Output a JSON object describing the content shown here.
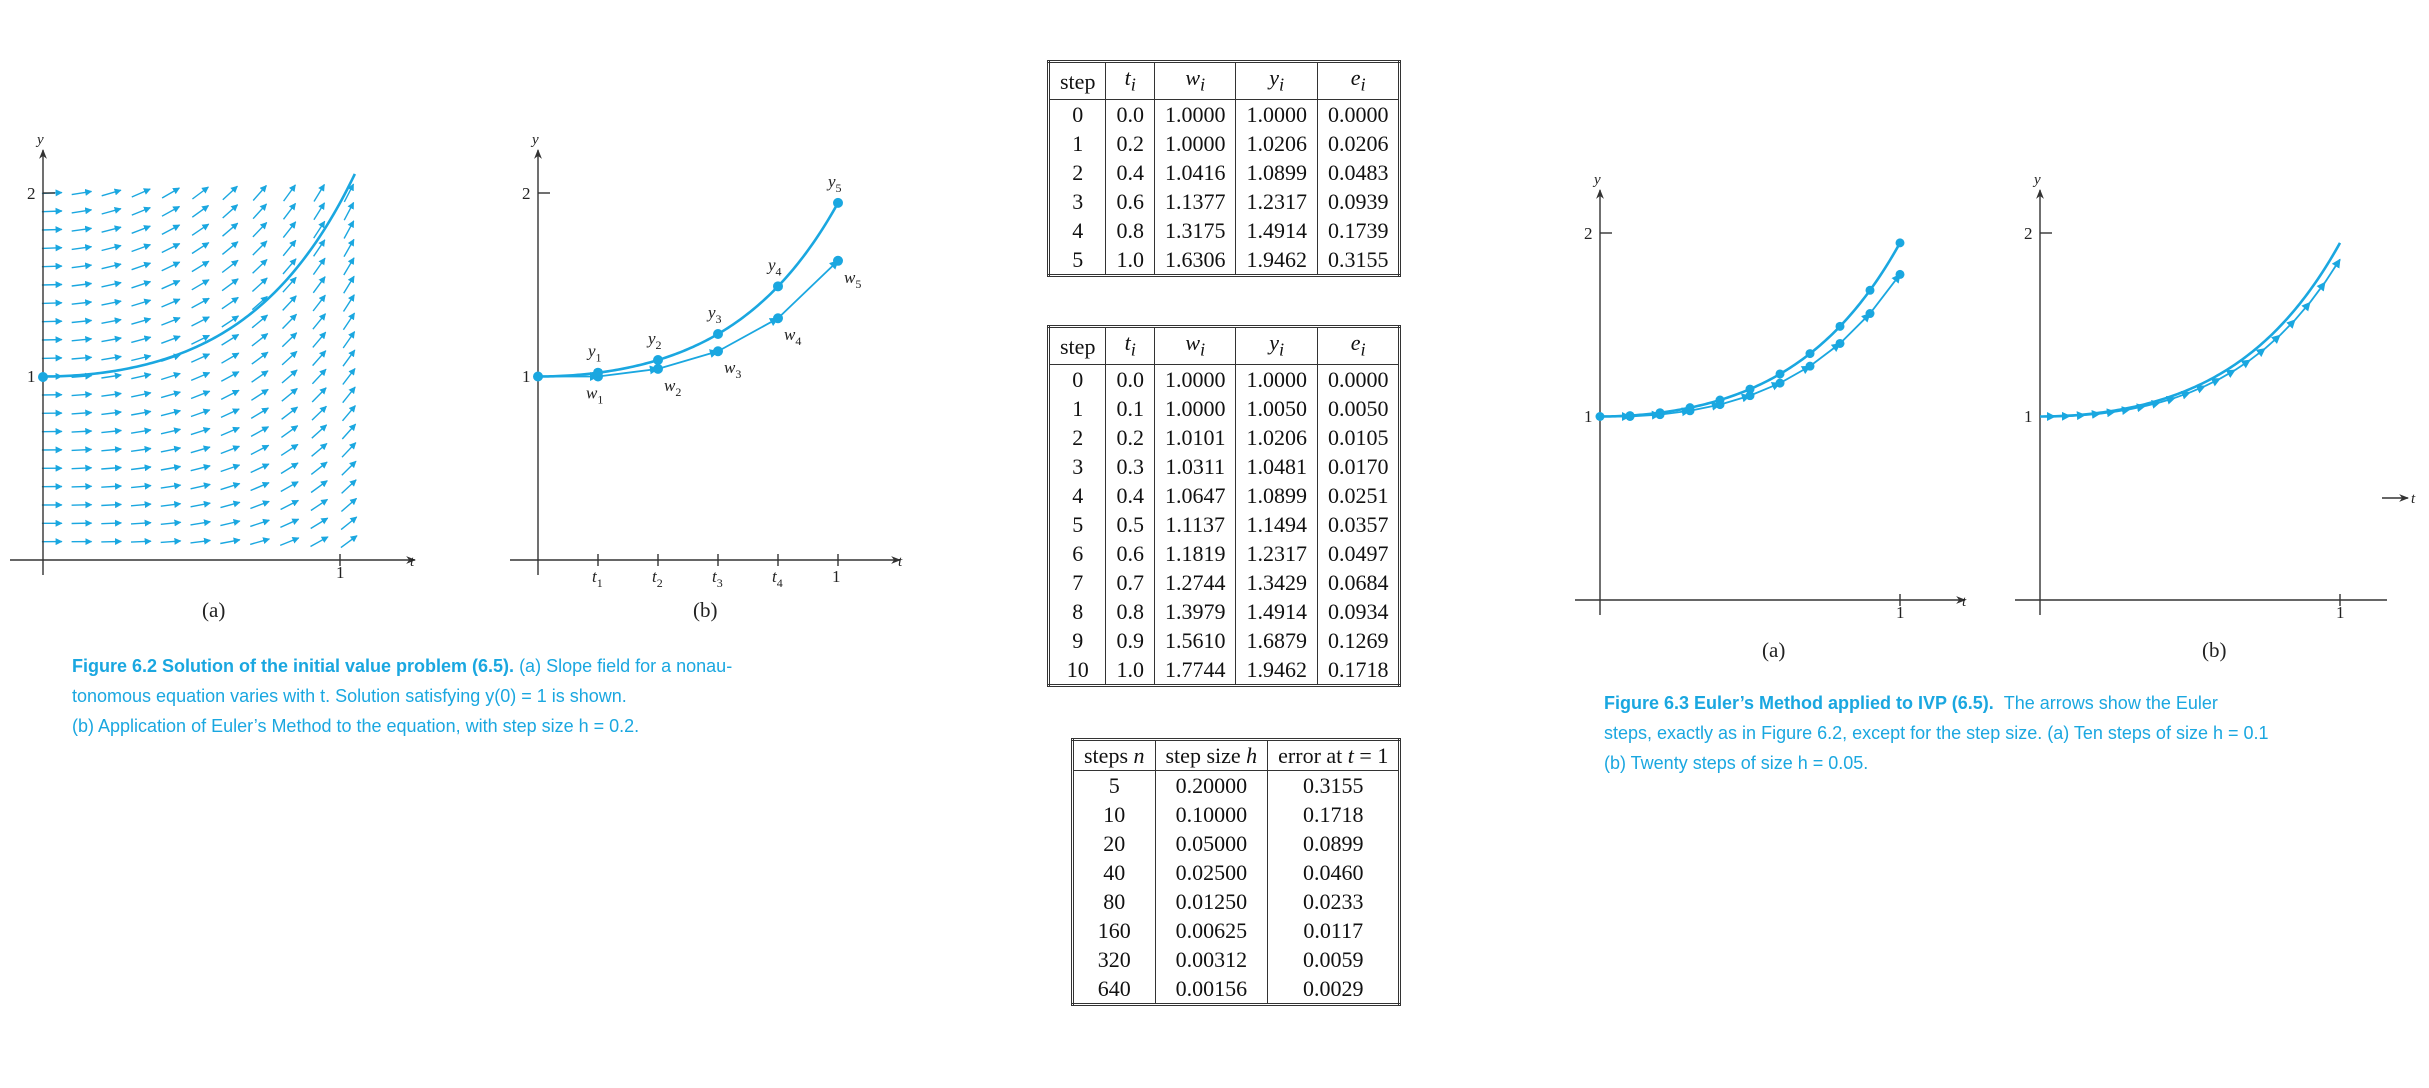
{
  "figure_6_2": {
    "panel_a_label": "(a)",
    "panel_b_label": "(b)",
    "caption_bold": "Figure 6.2 Solution of the initial value problem (6.5).",
    "caption_rest_1": " (a) Slope field for a nonau-",
    "caption_line_2": "tonomous equation varies with t. Solution satisfying y(0) = 1 is shown.",
    "caption_line_3": "(b) Application of Euler’s Method to the equation, with step size h = 0.2."
  },
  "figure_6_3": {
    "panel_a_label": "(a)",
    "panel_b_label": "(b)",
    "caption_bold": "Figure 6.3 Euler’s Method applied to IVP (6.5).",
    "caption_rest_1": "The arrows show the Euler",
    "caption_line_2": "steps, exactly as in Figure 6.2, except for the step size. (a) Ten steps of size h = 0.1",
    "caption_line_3": "(b) Twenty steps of size h = 0.05."
  },
  "stray_label": "t",
  "chart_data": [
    {
      "type": "line",
      "panel": "Figure 6.2 (a)",
      "title": "",
      "xlabel": "t",
      "ylabel": "y",
      "xlim": [
        0,
        1.2
      ],
      "ylim": [
        0,
        2.05
      ],
      "xticks": [
        "1"
      ],
      "yticks": [
        "1",
        "2"
      ],
      "grid": false,
      "slope_field": true,
      "initial_point": [
        0,
        1
      ],
      "series": [
        {
          "x": [
            0,
            0.1,
            0.2,
            0.3,
            0.4,
            0.5,
            0.6,
            0.7,
            0.8,
            0.9,
            1.0,
            1.05
          ],
          "values": [
            1.0,
            1.005,
            1.0206,
            1.0481,
            1.0899,
            1.1494,
            1.2317,
            1.3429,
            1.4914,
            1.6879,
            1.9462,
            2.0994
          ]
        }
      ]
    },
    {
      "type": "line",
      "panel": "Figure 6.2 (b)",
      "title": "",
      "xlabel": "t",
      "ylabel": "y",
      "xlim": [
        0,
        1.2
      ],
      "ylim": [
        0,
        2.05
      ],
      "xticks": [
        "t1",
        "t2",
        "t3",
        "t4",
        "1"
      ],
      "yticks": [
        "1",
        "2"
      ],
      "grid": false,
      "point_labels_y": [
        "y1",
        "y2",
        "y3",
        "y4",
        "y5"
      ],
      "point_labels_w": [
        "w1",
        "w2",
        "w3",
        "w4",
        "w5"
      ],
      "series": [
        {
          "x": [
            0,
            0.2,
            0.4,
            0.6,
            0.8,
            1.0
          ],
          "values": [
            1.0,
            1.0206,
            1.0899,
            1.2317,
            1.4914,
            1.9462
          ]
        },
        {
          "x": [
            0,
            0.2,
            0.4,
            0.6,
            0.8,
            1.0
          ],
          "values": [
            1.0,
            1.0,
            1.0416,
            1.1377,
            1.3175,
            1.6306
          ]
        }
      ]
    },
    {
      "type": "table",
      "columns": [
        "step",
        "t_i",
        "w_i",
        "y_i",
        "e_i"
      ],
      "rows": [
        [
          "0",
          "0.0",
          "1.0000",
          "1.0000",
          "0.0000"
        ],
        [
          "1",
          "0.2",
          "1.0000",
          "1.0206",
          "0.0206"
        ],
        [
          "2",
          "0.4",
          "1.0416",
          "1.0899",
          "0.0483"
        ],
        [
          "3",
          "0.6",
          "1.1377",
          "1.2317",
          "0.0939"
        ],
        [
          "4",
          "0.8",
          "1.3175",
          "1.4914",
          "0.1739"
        ],
        [
          "5",
          "1.0",
          "1.6306",
          "1.9462",
          "0.3155"
        ]
      ]
    },
    {
      "type": "table",
      "columns": [
        "step",
        "t_i",
        "w_i",
        "y_i",
        "e_i"
      ],
      "rows": [
        [
          "0",
          "0.0",
          "1.0000",
          "1.0000",
          "0.0000"
        ],
        [
          "1",
          "0.1",
          "1.0000",
          "1.0050",
          "0.0050"
        ],
        [
          "2",
          "0.2",
          "1.0101",
          "1.0206",
          "0.0105"
        ],
        [
          "3",
          "0.3",
          "1.0311",
          "1.0481",
          "0.0170"
        ],
        [
          "4",
          "0.4",
          "1.0647",
          "1.0899",
          "0.0251"
        ],
        [
          "5",
          "0.5",
          "1.1137",
          "1.1494",
          "0.0357"
        ],
        [
          "6",
          "0.6",
          "1.1819",
          "1.2317",
          "0.0497"
        ],
        [
          "7",
          "0.7",
          "1.2744",
          "1.3429",
          "0.0684"
        ],
        [
          "8",
          "0.8",
          "1.3979",
          "1.4914",
          "0.0934"
        ],
        [
          "9",
          "0.9",
          "1.5610",
          "1.6879",
          "0.1269"
        ],
        [
          "10",
          "1.0",
          "1.7744",
          "1.9462",
          "0.1718"
        ]
      ]
    },
    {
      "type": "table",
      "columns": [
        "steps n",
        "step size h",
        "error at t = 1"
      ],
      "rows": [
        [
          "5",
          "0.20000",
          "0.3155"
        ],
        [
          "10",
          "0.10000",
          "0.1718"
        ],
        [
          "20",
          "0.05000",
          "0.0899"
        ],
        [
          "40",
          "0.02500",
          "0.0460"
        ],
        [
          "80",
          "0.01250",
          "0.0233"
        ],
        [
          "160",
          "0.00625",
          "0.0117"
        ],
        [
          "320",
          "0.00312",
          "0.0059"
        ],
        [
          "640",
          "0.00156",
          "0.0029"
        ]
      ]
    },
    {
      "type": "line",
      "panel": "Figure 6.3 (a)",
      "title": "",
      "xlabel": "t",
      "ylabel": "y",
      "xlim": [
        0,
        1.2
      ],
      "ylim": [
        0,
        2.05
      ],
      "xticks": [
        "1"
      ],
      "yticks": [
        "1",
        "2"
      ],
      "grid": false,
      "series": [
        {
          "x": [
            0,
            0.1,
            0.2,
            0.3,
            0.4,
            0.5,
            0.6,
            0.7,
            0.8,
            0.9,
            1.0
          ],
          "values": [
            1.0,
            1.005,
            1.0206,
            1.0481,
            1.0899,
            1.1494,
            1.2317,
            1.3429,
            1.4914,
            1.6879,
            1.9462
          ]
        },
        {
          "x": [
            0,
            0.1,
            0.2,
            0.3,
            0.4,
            0.5,
            0.6,
            0.7,
            0.8,
            0.9,
            1.0
          ],
          "values": [
            1.0,
            1.0,
            1.0101,
            1.0311,
            1.0647,
            1.1137,
            1.1819,
            1.2744,
            1.3979,
            1.561,
            1.7744
          ]
        }
      ]
    },
    {
      "type": "line",
      "panel": "Figure 6.3 (b)",
      "title": "",
      "xlabel": "",
      "ylabel": "y",
      "xlim": [
        0,
        1.2
      ],
      "ylim": [
        0,
        2.05
      ],
      "xticks": [
        "1"
      ],
      "yticks": [
        "1",
        "2"
      ],
      "grid": false,
      "euler_steps": 20,
      "series": [
        {
          "x": [
            0,
            0.1,
            0.2,
            0.3,
            0.4,
            0.5,
            0.6,
            0.7,
            0.8,
            0.9,
            1.0
          ],
          "values": [
            1.0,
            1.005,
            1.0206,
            1.0481,
            1.0899,
            1.1494,
            1.2317,
            1.3429,
            1.4914,
            1.6879,
            1.9462
          ]
        }
      ]
    }
  ]
}
